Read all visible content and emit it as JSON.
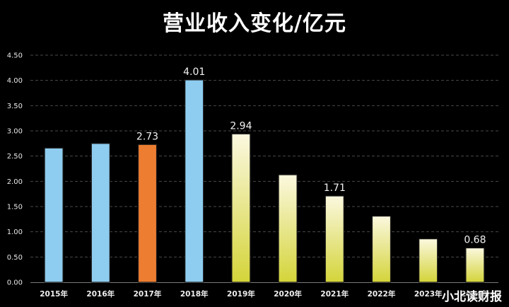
{
  "chart_data": {
    "type": "bar",
    "title": "营业收入变化/亿元",
    "categories": [
      "2015年",
      "2016年",
      "2017年",
      "2018年",
      "2019年",
      "2020年",
      "2021年",
      "2022年",
      "2023年",
      "2024年"
    ],
    "values": [
      2.66,
      2.75,
      2.73,
      4.01,
      2.94,
      2.13,
      1.71,
      1.31,
      0.86,
      0.68
    ],
    "data_labels": [
      null,
      null,
      "2.73",
      "4.01",
      "2.94",
      null,
      "1.71",
      null,
      null,
      "0.68"
    ],
    "bar_styles": [
      "blue",
      "blue",
      "orange",
      "blue",
      "yellow",
      "yellow",
      "yellow",
      "yellow",
      "yellow",
      "yellow"
    ],
    "colors": {
      "blue": "#8ecdf0",
      "orange": "#ed7d31",
      "yellow_top": "#fbf8df",
      "yellow_bottom": "#d4d43a",
      "grid": "#4a4a4a"
    },
    "ylim": [
      0,
      4.5
    ],
    "yticks": [
      "0.00",
      "0.50",
      "1.00",
      "1.50",
      "2.00",
      "2.50",
      "3.00",
      "3.50",
      "4.00",
      "4.50"
    ],
    "grid": true,
    "legend": "none"
  },
  "watermark": "小北读财报"
}
